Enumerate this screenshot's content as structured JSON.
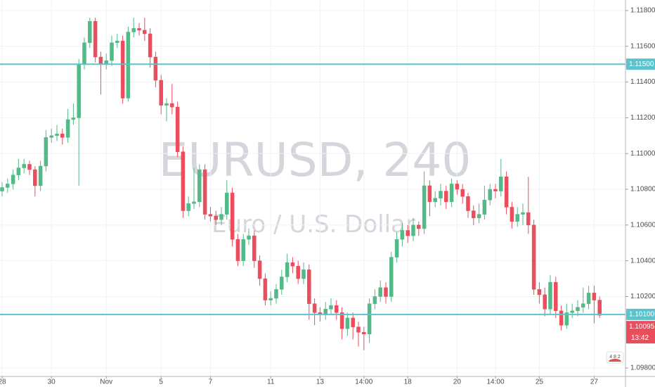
{
  "chart_data": {
    "type": "candlestick",
    "title": "EURUSD, 240",
    "subtitle": "Euro / U.S. Dollar",
    "badge": "4 8 2",
    "up_color": "#53b987",
    "down_color": "#eb4d5c",
    "grid": true,
    "categories": [
      "28",
      null,
      null,
      null,
      null,
      null,
      null,
      null,
      null,
      "30",
      null,
      null,
      null,
      null,
      null,
      null,
      null,
      null,
      null,
      "Nov",
      null,
      null,
      null,
      null,
      null,
      null,
      null,
      null,
      null,
      "5",
      null,
      null,
      null,
      null,
      null,
      null,
      null,
      null,
      "7",
      null,
      null,
      null,
      null,
      null,
      null,
      null,
      null,
      null,
      null,
      "11",
      null,
      null,
      null,
      null,
      null,
      null,
      null,
      null,
      "13",
      null,
      null,
      null,
      null,
      null,
      null,
      null,
      "14:00",
      null,
      null,
      null,
      null,
      null,
      null,
      null,
      "18",
      null,
      null,
      null,
      null,
      null,
      null,
      null,
      null,
      "20",
      null,
      null,
      null,
      null,
      null,
      null,
      "14:00",
      null,
      null,
      null,
      null,
      null,
      null,
      null,
      "25",
      null,
      null,
      null,
      null,
      null,
      null,
      null,
      null,
      null,
      "27",
      null
    ],
    "open": [
      1.1079,
      1.1081,
      1.1083,
      1.1088,
      1.1092,
      1.1094,
      1.1091,
      1.1082,
      1.1093,
      1.1109,
      1.111,
      1.1111,
      1.1109,
      1.1119,
      1.112,
      1.115,
      1.1162,
      1.1174,
      1.1154,
      1.115,
      1.1152,
      1.1162,
      1.1163,
      1.1131,
      1.1168,
      1.117,
      1.1169,
      1.1167,
      1.1154,
      1.1141,
      1.1127,
      1.1128,
      1.1126,
      1.1101,
      1.1068,
      1.1072,
      1.1073,
      1.1091,
      1.1066,
      1.1065,
      1.1063,
      1.1066,
      1.1078,
      1.1052,
      1.104,
      1.1052,
      1.1054,
      1.104,
      1.103,
      1.1018,
      1.1019,
      1.1024,
      1.1031,
      1.1039,
      1.1037,
      1.103,
      1.1035,
      1.1016,
      1.1011,
      1.101,
      1.1013,
      1.1015,
      1.1011,
      1.1002,
      1.1008,
      1.1003,
      1.1,
      1.0999,
      1.1016,
      1.102,
      1.1025,
      1.102,
      1.1042,
      1.1052,
      1.1057,
      1.1054,
      1.106,
      1.1058,
      1.1082,
      1.1073,
      1.1075,
      1.1079,
      1.1073,
      1.1083,
      1.108,
      1.1076,
      1.1068,
      1.1064,
      1.1066,
      1.1074,
      1.108,
      1.1079,
      1.1087,
      1.107,
      1.1062,
      1.1066,
      1.1067,
      1.106,
      1.1024,
      1.1021,
      1.1013,
      1.1028,
      1.1012,
      1.1004,
      1.1011,
      1.1012,
      1.1014,
      1.1016,
      1.1022,
      1.1018
    ],
    "high": [
      1.1084,
      1.1086,
      1.1091,
      1.1097,
      1.1097,
      1.1096,
      1.1093,
      1.1096,
      1.1113,
      1.1114,
      1.1116,
      1.1114,
      1.1125,
      1.1128,
      1.1153,
      1.1165,
      1.1176,
      1.1176,
      1.1157,
      1.1156,
      1.1166,
      1.1167,
      1.1166,
      1.1171,
      1.1176,
      1.1173,
      1.1176,
      1.117,
      1.1157,
      1.1144,
      1.1131,
      1.1139,
      1.1129,
      1.1104,
      1.1076,
      1.1092,
      1.1094,
      1.1094,
      1.107,
      1.1068,
      1.107,
      1.1085,
      1.1081,
      1.1055,
      1.1055,
      1.1058,
      1.1057,
      1.1043,
      1.1033,
      1.1023,
      1.1027,
      1.1035,
      1.1044,
      1.1042,
      1.104,
      1.1039,
      1.1038,
      1.1019,
      1.1014,
      1.1017,
      1.1019,
      1.1018,
      1.1014,
      1.1011,
      1.1011,
      1.1006,
      1.1003,
      1.1019,
      1.1024,
      1.1029,
      1.1028,
      1.1045,
      1.1056,
      1.1061,
      1.106,
      1.1064,
      1.1062,
      1.109,
      1.1085,
      1.1079,
      1.1083,
      1.1082,
      1.1086,
      1.1085,
      1.1083,
      1.1078,
      1.1071,
      1.1072,
      1.1082,
      1.1083,
      1.1083,
      1.1097,
      1.109,
      1.1073,
      1.107,
      1.1072,
      1.1087,
      1.1063,
      1.1028,
      1.1025,
      1.1032,
      1.1031,
      1.1015,
      1.1016,
      1.1016,
      1.1018,
      1.1025,
      1.1026,
      1.1026,
      1.102
    ],
    "low": [
      1.1076,
      1.1078,
      1.108,
      1.1085,
      1.1089,
      1.1088,
      1.1076,
      1.1079,
      1.109,
      1.1106,
      1.1107,
      1.1105,
      1.1106,
      1.1116,
      1.1082,
      1.1147,
      1.1159,
      1.1151,
      1.1133,
      1.1147,
      1.1149,
      1.1159,
      1.1128,
      1.1129,
      1.1165,
      1.1166,
      1.1163,
      1.1148,
      1.1137,
      1.1122,
      1.1118,
      1.1122,
      1.1098,
      1.1064,
      1.1065,
      1.1069,
      1.107,
      1.1063,
      1.1062,
      1.106,
      1.106,
      1.1063,
      1.1048,
      1.1037,
      1.1037,
      1.1049,
      1.1036,
      1.1026,
      1.1015,
      1.1015,
      1.1016,
      1.1021,
      1.1028,
      1.1033,
      1.1027,
      1.1027,
      1.1007,
      1.1004,
      1.1006,
      1.1007,
      1.101,
      1.1007,
      1.0996,
      1.0998,
      1.0996,
      1.0992,
      1.099,
      1.0994,
      1.1013,
      1.1017,
      1.1016,
      1.1017,
      1.1039,
      1.1048,
      1.105,
      1.1051,
      1.1054,
      1.1055,
      1.1065,
      1.107,
      1.1071,
      1.1069,
      1.107,
      1.1077,
      1.1072,
      1.1064,
      1.106,
      1.1061,
      1.1063,
      1.1071,
      1.1075,
      1.1076,
      1.1066,
      1.1058,
      1.1059,
      1.106,
      1.1055,
      1.1021,
      1.1016,
      1.1009,
      1.101,
      1.1008,
      1.1001,
      1.1002,
      1.1008,
      1.1009,
      1.1011,
      1.1013,
      1.1005,
      1.1008
    ],
    "close": [
      1.1081,
      1.1083,
      1.1088,
      1.1092,
      1.1094,
      1.1091,
      1.1082,
      1.1093,
      1.1109,
      1.111,
      1.1111,
      1.1109,
      1.1119,
      1.112,
      1.115,
      1.1162,
      1.1174,
      1.1154,
      1.115,
      1.1152,
      1.1162,
      1.1163,
      1.1131,
      1.1168,
      1.117,
      1.1169,
      1.1167,
      1.1154,
      1.1141,
      1.1127,
      1.1128,
      1.1126,
      1.1101,
      1.1068,
      1.1072,
      1.1073,
      1.1091,
      1.1066,
      1.1065,
      1.1063,
      1.1066,
      1.1078,
      1.1052,
      1.104,
      1.1052,
      1.1054,
      1.104,
      1.103,
      1.1018,
      1.1019,
      1.1024,
      1.1031,
      1.1039,
      1.1037,
      1.103,
      1.1035,
      1.1016,
      1.1011,
      1.101,
      1.1013,
      1.1015,
      1.1011,
      1.1002,
      1.1008,
      1.1003,
      1.1,
      1.0999,
      1.1016,
      1.102,
      1.1025,
      1.102,
      1.1042,
      1.1052,
      1.1057,
      1.1054,
      1.106,
      1.1058,
      1.1082,
      1.1073,
      1.1075,
      1.1079,
      1.1073,
      1.1083,
      1.108,
      1.1076,
      1.1068,
      1.1064,
      1.1066,
      1.1074,
      1.108,
      1.1079,
      1.1087,
      1.107,
      1.1062,
      1.1066,
      1.1067,
      1.106,
      1.1024,
      1.1021,
      1.1013,
      1.1028,
      1.1012,
      1.1004,
      1.1011,
      1.1012,
      1.1014,
      1.1016,
      1.1022,
      1.1018,
      1.10095
    ],
    "ylim": [
      1.09753,
      1.11859
    ],
    "yticks": [
      {
        "value": 1.098,
        "label": "1.09800"
      },
      {
        "value": 1.102,
        "label": "1.10200"
      },
      {
        "value": 1.104,
        "label": "1.10400"
      },
      {
        "value": 1.106,
        "label": "1.10600"
      },
      {
        "value": 1.108,
        "label": "1.10800"
      },
      {
        "value": 1.11,
        "label": "1.11000"
      },
      {
        "value": 1.112,
        "label": "1.11200"
      },
      {
        "value": 1.114,
        "label": "1.11400"
      },
      {
        "value": 1.116,
        "label": "1.11600"
      },
      {
        "value": 1.118,
        "label": "1.11800"
      }
    ],
    "hlines": [
      {
        "value": 1.115,
        "label": "1.11500",
        "color": "#5cc3cc"
      },
      {
        "value": 1.101,
        "label": "1.10100",
        "color": "#5cc3cc"
      }
    ],
    "last_price": {
      "value": 1.10095,
      "label": "1.10095",
      "countdown": "13:42",
      "color": "#eb4d5c"
    }
  }
}
